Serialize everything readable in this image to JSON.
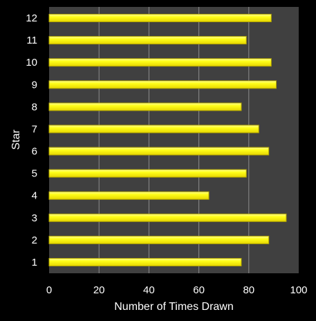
{
  "chart_data": {
    "type": "bar",
    "orientation": "horizontal",
    "categories": [
      "1",
      "2",
      "3",
      "4",
      "5",
      "6",
      "7",
      "8",
      "9",
      "10",
      "11",
      "12"
    ],
    "values": [
      77,
      88,
      95,
      64,
      79,
      88,
      84,
      77,
      91,
      89,
      79,
      89
    ],
    "xlabel": "Number of Times Drawn",
    "ylabel": "Star",
    "xlim": [
      0,
      100
    ],
    "xticks": [
      "0",
      "20",
      "40",
      "60",
      "80",
      "100"
    ],
    "grid": "vertical",
    "legend": "none",
    "colors": {
      "background": "#000000",
      "plot_area": "#404040",
      "gridline": "#8c8c8c",
      "bar_fill": "#ffff1a",
      "bar_highlight": "#ffff99",
      "bar_edge": "#b3a600",
      "text": "#ffffff"
    }
  }
}
